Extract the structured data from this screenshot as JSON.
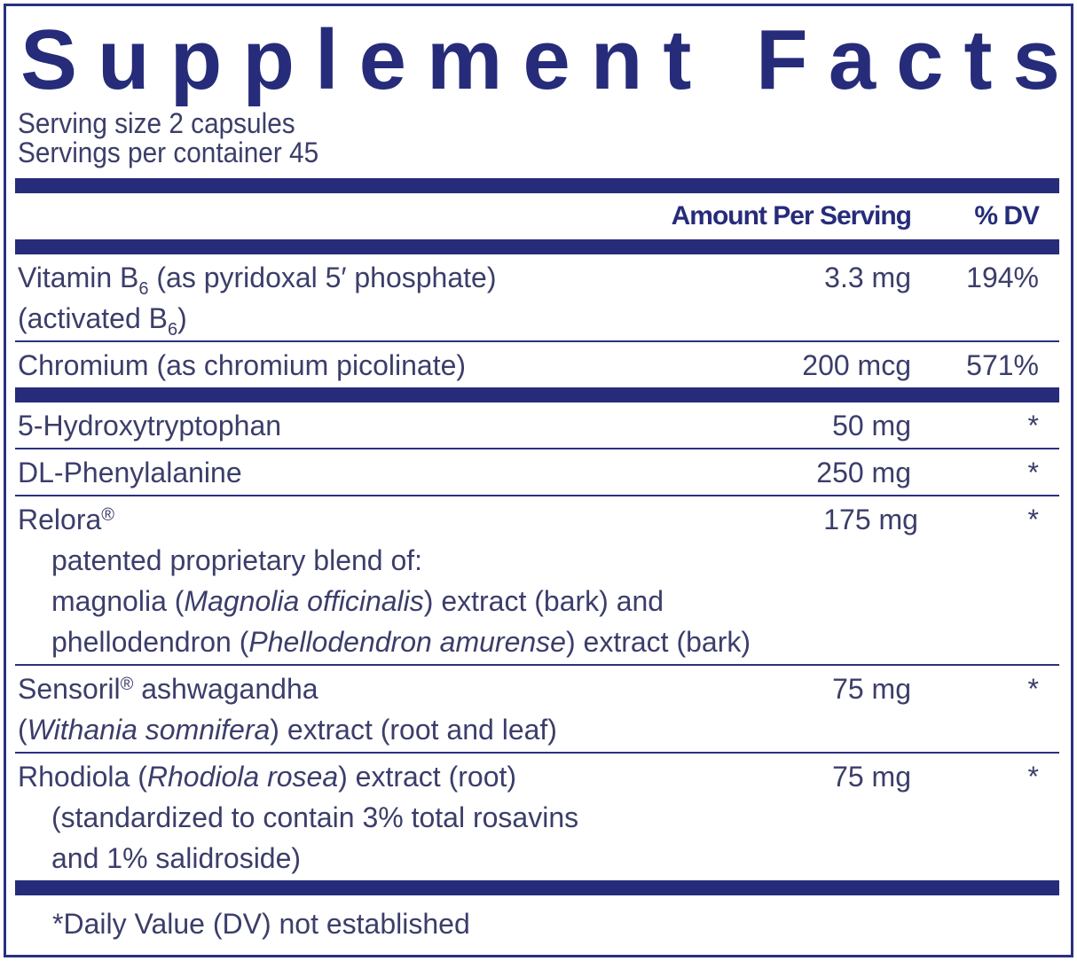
{
  "title": "Supplement Facts",
  "serving_size": "Serving size  2 capsules",
  "servings_per_container": "Servings per container  45",
  "header": {
    "amount": "Amount Per Serving",
    "dv": "% DV"
  },
  "sections": [
    {
      "rows": [
        {
          "lines": [
            {
              "parts": [
                {
                  "text": "Vitamin B"
                },
                {
                  "text": "6",
                  "style": "sub"
                },
                {
                  "text": " (as pyridoxal 5′ phosphate)"
                }
              ]
            },
            {
              "parts": [
                {
                  "text": "(activated B"
                },
                {
                  "text": "6",
                  "style": "sub"
                },
                {
                  "text": ")"
                }
              ]
            }
          ],
          "amount": "3.3 mg",
          "dv": "194%"
        },
        {
          "lines": [
            {
              "parts": [
                {
                  "text": "Chromium (as chromium picolinate)"
                }
              ]
            }
          ],
          "amount": "200 mcg",
          "dv": "571%"
        }
      ]
    },
    {
      "rows": [
        {
          "lines": [
            {
              "parts": [
                {
                  "text": "5-Hydroxytryptophan"
                }
              ]
            }
          ],
          "amount": "50 mg",
          "dv": "*"
        },
        {
          "lines": [
            {
              "parts": [
                {
                  "text": "DL-Phenylalanine"
                }
              ]
            }
          ],
          "amount": "250 mg",
          "dv": "*"
        },
        {
          "lines": [
            {
              "parts": [
                {
                  "text": "Relora"
                },
                {
                  "text": "®",
                  "style": "sup"
                }
              ]
            },
            {
              "indent": true,
              "parts": [
                {
                  "text": "patented proprietary blend of:"
                }
              ]
            },
            {
              "indent": true,
              "parts": [
                {
                  "text": "magnolia ("
                },
                {
                  "text": "Magnolia officinalis",
                  "style": "italic"
                },
                {
                  "text": ") extract (bark) and"
                }
              ]
            },
            {
              "indent": true,
              "parts": [
                {
                  "text": "phellodendron ("
                },
                {
                  "text": "Phellodendron amurense",
                  "style": "italic"
                },
                {
                  "text": ") extract (bark)"
                }
              ]
            }
          ],
          "amount": "175 mg",
          "dv": "*"
        },
        {
          "lines": [
            {
              "parts": [
                {
                  "text": "Sensoril"
                },
                {
                  "text": "®",
                  "style": "sup"
                },
                {
                  "text": " ashwagandha"
                }
              ]
            },
            {
              "parts": [
                {
                  "text": "("
                },
                {
                  "text": "Withania somnifera",
                  "style": "italic"
                },
                {
                  "text": ") extract (root and leaf)"
                }
              ]
            }
          ],
          "amount": "75 mg",
          "dv": "*"
        },
        {
          "lines": [
            {
              "parts": [
                {
                  "text": "Rhodiola ("
                },
                {
                  "text": "Rhodiola rosea",
                  "style": "italic"
                },
                {
                  "text": ") extract (root)"
                }
              ]
            },
            {
              "indent": true,
              "parts": [
                {
                  "text": "(standardized to contain 3% total rosavins"
                }
              ]
            },
            {
              "indent": true,
              "parts": [
                {
                  "text": "and 1% salidroside)"
                }
              ]
            }
          ],
          "amount": "75 mg",
          "dv": "*"
        }
      ]
    }
  ],
  "footnote": "*Daily Value (DV) not established"
}
